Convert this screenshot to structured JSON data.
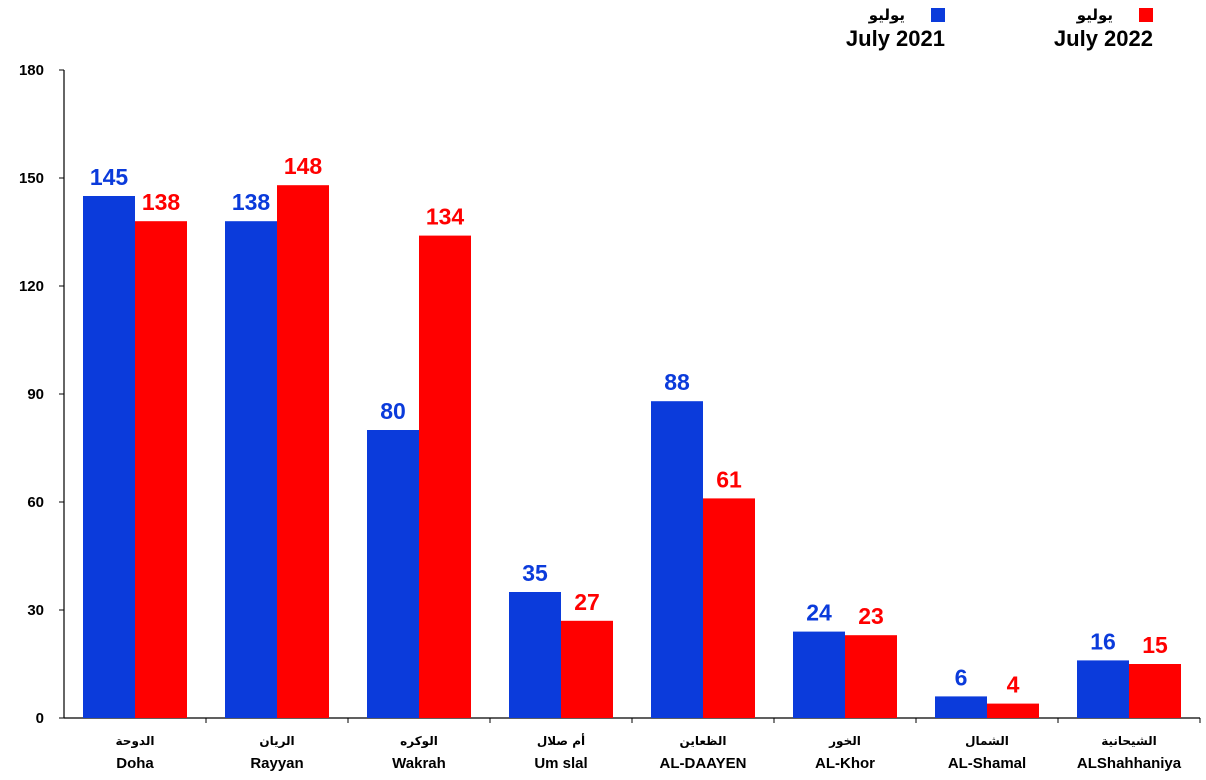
{
  "colors": {
    "july2021": "#0B3BDB",
    "july2022": "#FF0000"
  },
  "legend": [
    {
      "ar": "يوليو",
      "en": "July 2021",
      "color": "#0B3BDB"
    },
    {
      "ar": "يوليو",
      "en": "July 2022",
      "color": "#FF0000"
    }
  ],
  "chart_data": {
    "type": "bar",
    "categories_ar": [
      "الدوحة",
      "الريان",
      "الوكره",
      "أم صلال",
      "الظعاين",
      "الخور",
      "الشمال",
      "الشيحانية"
    ],
    "categories": [
      "Doha",
      "Rayyan",
      "Wakrah",
      "Um slal",
      "AL-DAAYEN",
      "AL-Khor",
      "AL-Shamal",
      "ALShahhaniya"
    ],
    "series": [
      {
        "name": "July 2021",
        "name_ar": "يوليو",
        "color": "#0B3BDB",
        "values": [
          145,
          138,
          80,
          35,
          88,
          24,
          6,
          16
        ]
      },
      {
        "name": "July 2022",
        "name_ar": "يوليو",
        "color": "#FF0000",
        "values": [
          138,
          148,
          134,
          27,
          61,
          23,
          4,
          15
        ]
      }
    ],
    "ylim": [
      0,
      180
    ],
    "yticks": [
      0,
      30,
      60,
      90,
      120,
      150,
      180
    ],
    "data_labels": true,
    "grid": false,
    "legend_position": "top-right"
  }
}
